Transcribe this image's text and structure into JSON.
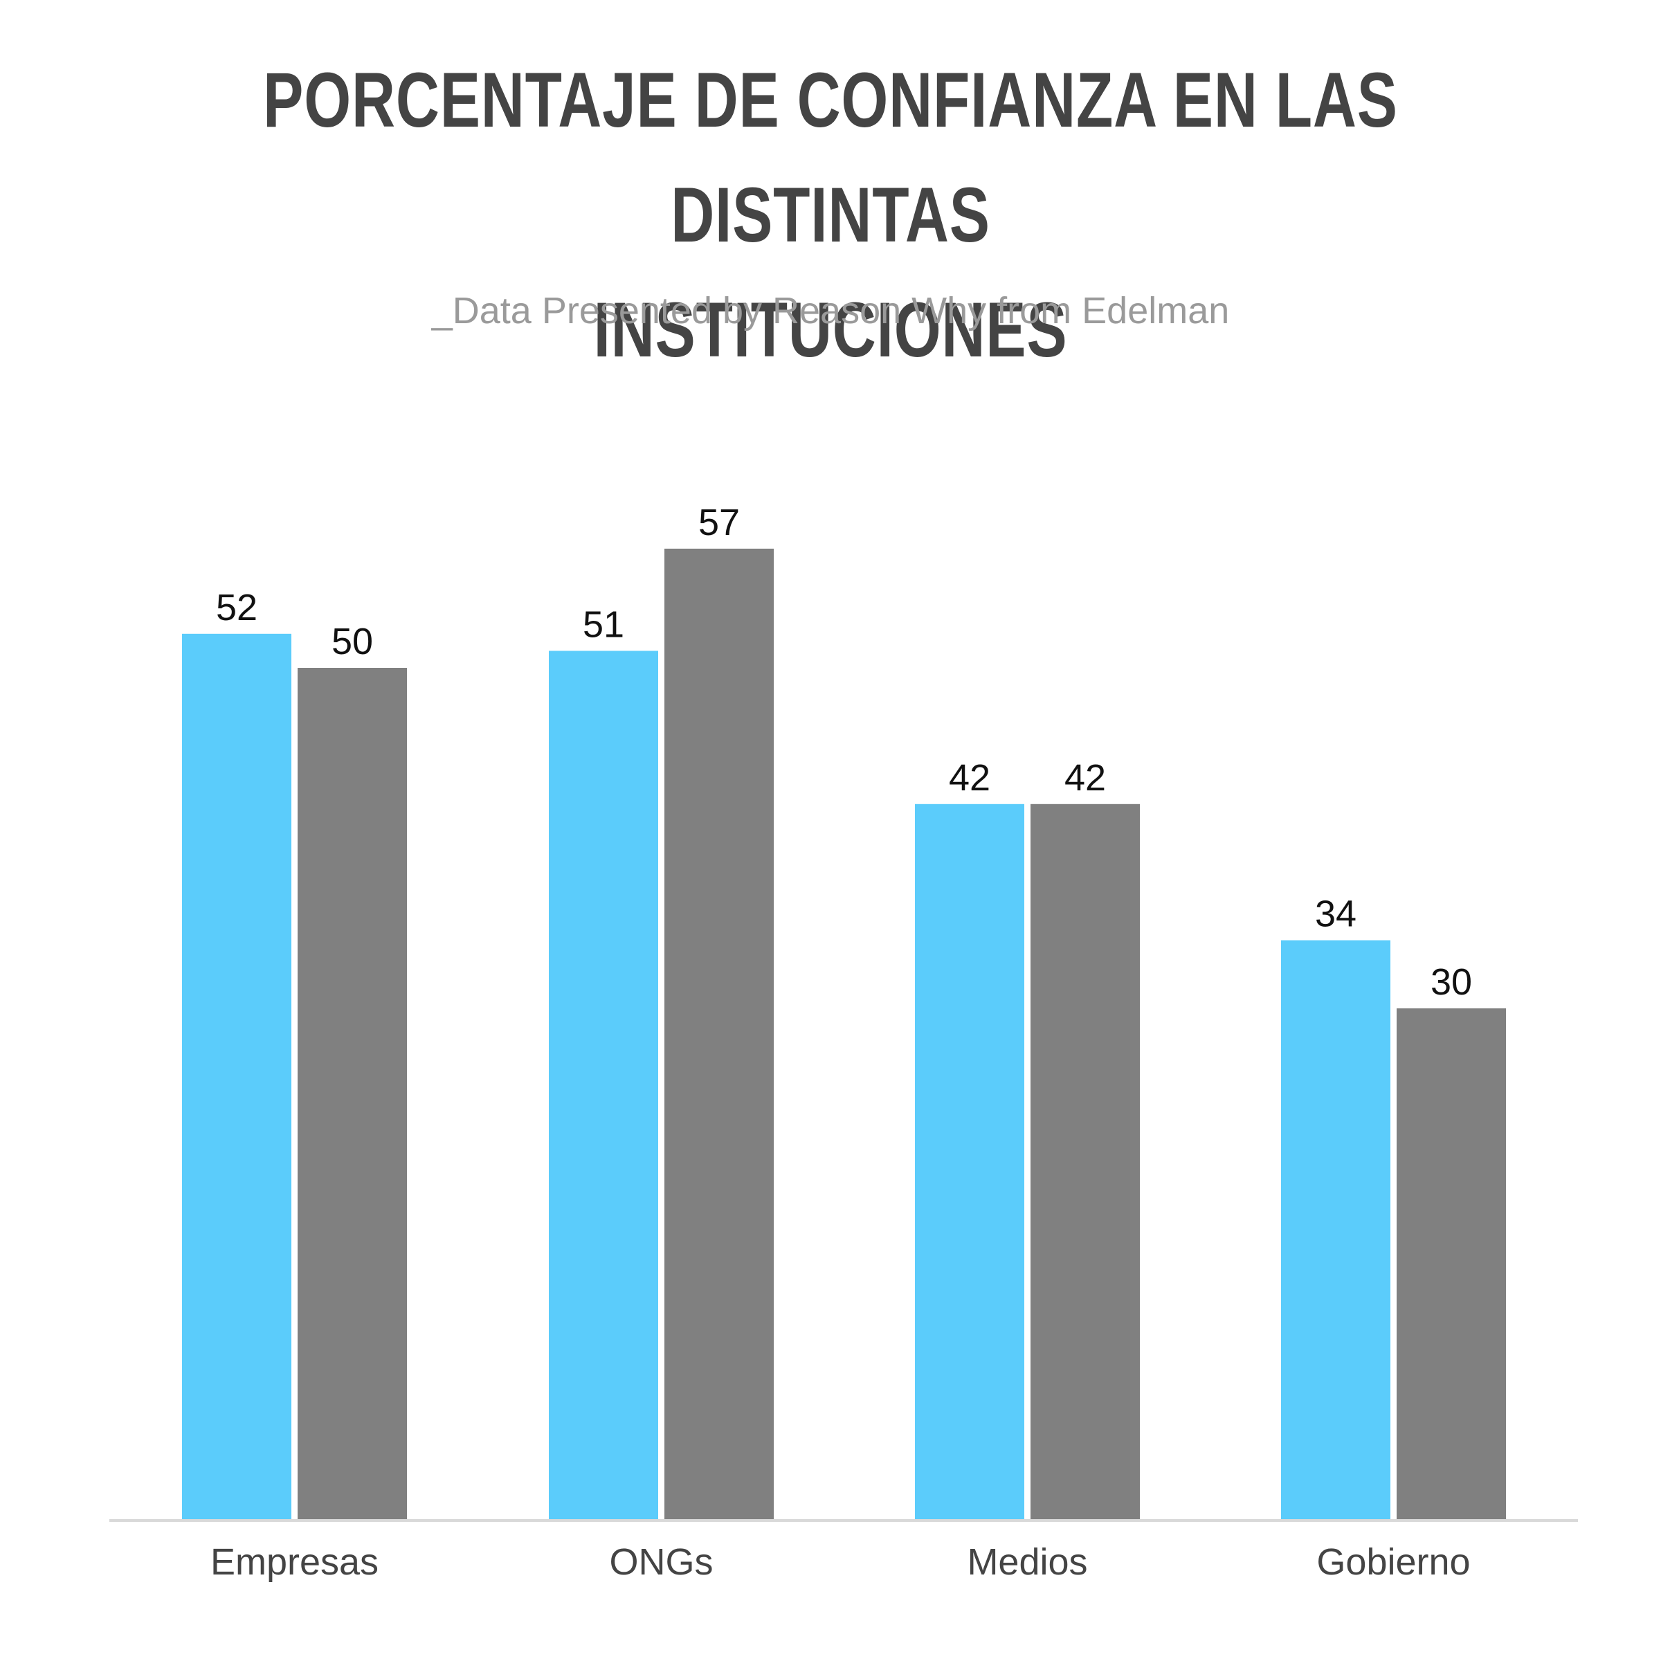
{
  "chart_data": {
    "type": "bar",
    "title": "PORCENTAJE DE CONFIANZA EN LAS DISTINTAS INSTITUCIONES",
    "subtitle": "_Data Presented by Reason Why from Edelman",
    "categories": [
      "Empresas",
      "ONGs",
      "Medios",
      "Gobierno"
    ],
    "series": [
      {
        "values": [
          52,
          51,
          42,
          34
        ],
        "color": "#5BCCFB"
      },
      {
        "values": [
          50,
          57,
          42,
          30
        ],
        "color": "#808080"
      }
    ],
    "xlabel": "",
    "ylabel": "",
    "ylim": [
      0,
      100
    ],
    "grid": false,
    "legend": "none",
    "axis_color": "#d9d9d9"
  }
}
